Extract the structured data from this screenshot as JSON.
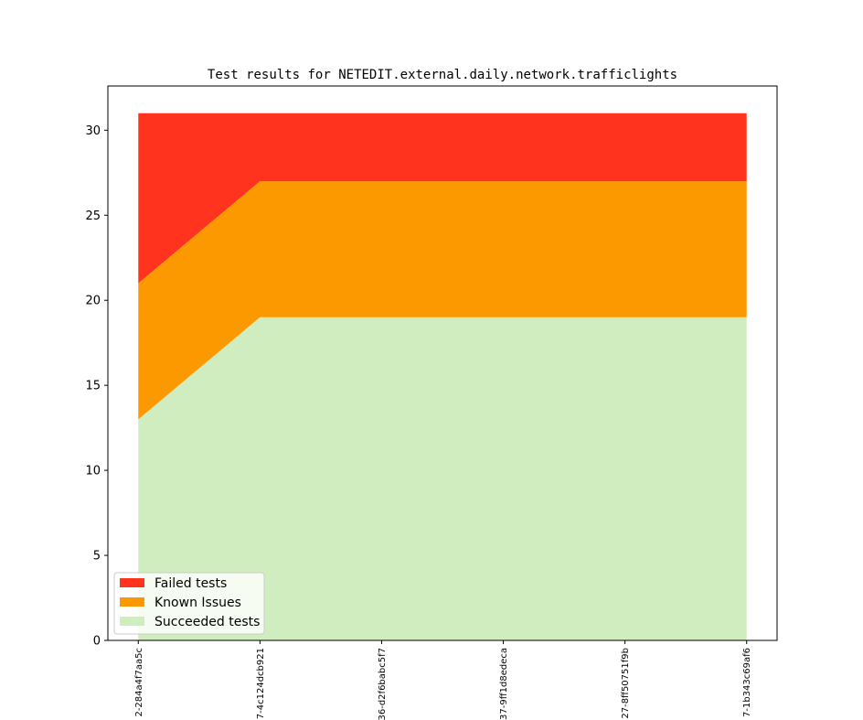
{
  "chart_data": {
    "type": "area",
    "stacked": true,
    "title": "Test results for NETEDIT.external.daily.network.trafficlights",
    "xlabel": "",
    "ylabel": "",
    "categories": [
      "2-284a4f7aa5c",
      "7-4c124dcb921",
      "36-d2f6babc5f7",
      "37-9ff1d8edeca",
      "27-8ff50751f9b",
      "7-1b343c69af6"
    ],
    "series": [
      {
        "name": "Succeeded tests",
        "color": "#cfedbf",
        "values": [
          13,
          19,
          19,
          19,
          19,
          19
        ]
      },
      {
        "name": "Known Issues",
        "color": "#fd9900",
        "values": [
          8,
          8,
          8,
          8,
          8,
          8
        ]
      },
      {
        "name": "Failed tests",
        "color": "#ff331e",
        "values": [
          10,
          4,
          4,
          4,
          4,
          4
        ]
      }
    ],
    "legend_order": [
      "Failed tests",
      "Known Issues",
      "Succeeded tests"
    ],
    "legend_position": "lower-left",
    "ylim": [
      0,
      32.6
    ],
    "xlim": [
      -0.25,
      5.25
    ],
    "yticks": [
      0,
      5,
      10,
      15,
      20,
      25,
      30
    ],
    "grid": false
  }
}
